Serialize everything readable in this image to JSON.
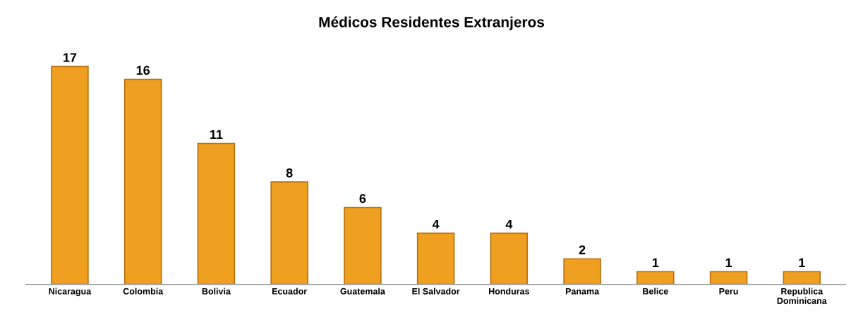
{
  "chart_data": {
    "type": "bar",
    "title": "Médicos Residentes Extranjeros",
    "categories": [
      "Nicaragua",
      "Colombia",
      "Bolivia",
      "Ecuador",
      "Guatemala",
      "El Salvador",
      "Honduras",
      "Panama",
      "Belice",
      "Peru",
      "Republica\nDominicana"
    ],
    "values": [
      17,
      16,
      11,
      8,
      6,
      4,
      4,
      2,
      1,
      1,
      1
    ],
    "color": "#f0a020",
    "data_labels": true,
    "grid": false,
    "legend": false
  }
}
